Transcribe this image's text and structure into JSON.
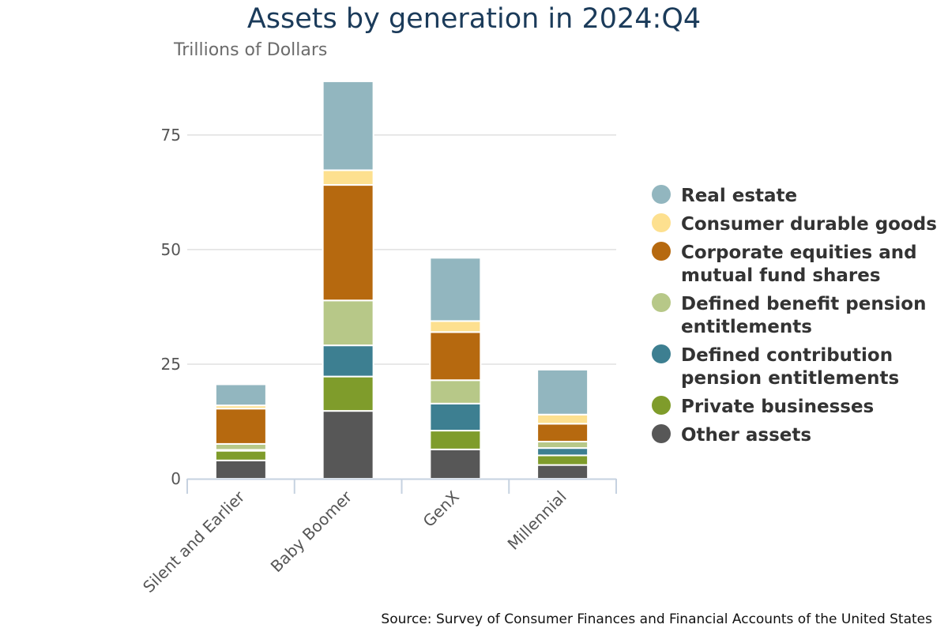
{
  "chart_data": {
    "type": "bar",
    "stacked": true,
    "title": "Assets by generation in 2024:Q4",
    "ylabel": "Trillions of Dollars",
    "xlabel": "",
    "ylim": [
      0,
      86
    ],
    "yticks": [
      0,
      25,
      50,
      75
    ],
    "grid": true,
    "legend_position": "right",
    "categories": [
      "Silent and Earlier",
      "Baby Boomer",
      "GenX",
      "Millennial"
    ],
    "series": [
      {
        "name": "Other assets",
        "color": "#575757",
        "values": [
          4.0,
          14.8,
          6.4,
          3.0
        ]
      },
      {
        "name": "Private businesses",
        "color": "#7f9c2b",
        "values": [
          2.1,
          7.5,
          4.1,
          2.1
        ]
      },
      {
        "name": "Defined contribution pension entitlements",
        "color": "#3d7f91",
        "values": [
          0.2,
          6.8,
          5.9,
          1.6
        ]
      },
      {
        "name": "Defined benefit pension entitlements",
        "color": "#b7c888",
        "values": [
          1.3,
          9.8,
          5.1,
          1.4
        ]
      },
      {
        "name": "Corporate equities and mutual fund shares",
        "color": "#b6690f",
        "values": [
          7.7,
          25.2,
          10.5,
          3.9
        ]
      },
      {
        "name": "Consumer durable goods",
        "color": "#fde08f",
        "values": [
          0.7,
          3.2,
          2.4,
          2.0
        ]
      },
      {
        "name": "Real estate",
        "color": "#92b6bf",
        "values": [
          4.6,
          19.4,
          13.8,
          9.8
        ]
      }
    ],
    "legend_order": [
      "Real estate",
      "Consumer durable goods",
      "Corporate equities and mutual fund shares",
      "Defined benefit pension entitlements",
      "Defined contribution pension entitlements",
      "Private businesses",
      "Other assets"
    ],
    "legend_lines": {
      "Real estate": [
        "Real estate"
      ],
      "Consumer durable goods": [
        "Consumer durable goods"
      ],
      "Corporate equities and mutual fund shares": [
        "Corporate equities and",
        "mutual fund shares"
      ],
      "Defined benefit pension entitlements": [
        "Defined benefit pension",
        "entitlements"
      ],
      "Defined contribution pension entitlements": [
        "Defined contribution",
        "pension entitlements"
      ],
      "Private businesses": [
        "Private businesses"
      ],
      "Other assets": [
        "Other assets"
      ]
    },
    "source": "Source: Survey of Consumer Finances and Financial Accounts of the United States"
  }
}
